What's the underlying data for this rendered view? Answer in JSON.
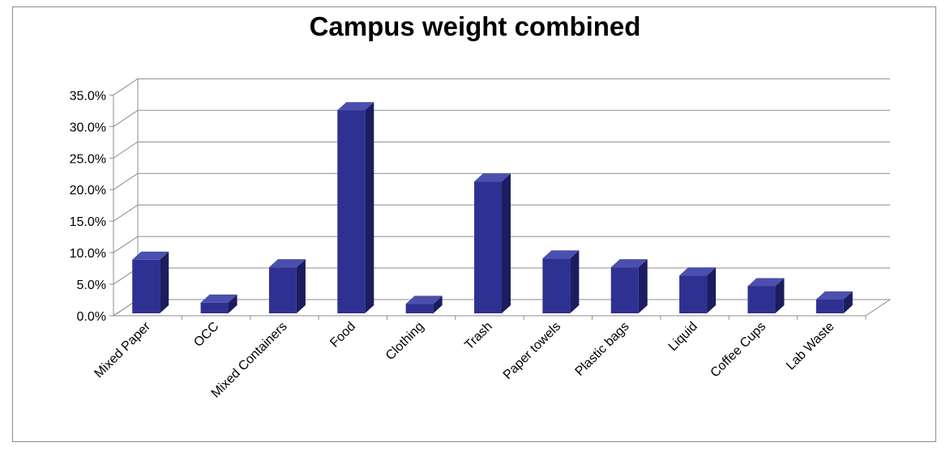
{
  "chart_data": {
    "type": "bar",
    "title": "Campus weight combined",
    "xlabel": "",
    "ylabel": "",
    "categories": [
      "Mixed Paper",
      "OCC",
      "Mixed Containers",
      "Food",
      "Clothing",
      "Trash",
      "Paper towels",
      "Plastic bags",
      "Liquid",
      "Coffee Cups",
      "Lab Waste"
    ],
    "values": [
      8.5,
      1.7,
      7.3,
      32.2,
      1.5,
      20.9,
      8.7,
      7.3,
      6.0,
      4.3,
      2.2
    ],
    "value_format": "percent",
    "ylim": [
      0,
      35
    ],
    "yticks": [
      "0.0%",
      "5.0%",
      "10.0%",
      "15.0%",
      "20.0%",
      "25.0%",
      "30.0%",
      "35.0%"
    ],
    "grid": true,
    "legend": "none",
    "bar_3d": true,
    "colors": {
      "bar_front": "#2e3192",
      "bar_side": "#1b1d5e",
      "bar_top": "#4b4fae",
      "grid": "#8c8c8c",
      "frame": "#8c8c8c"
    }
  }
}
